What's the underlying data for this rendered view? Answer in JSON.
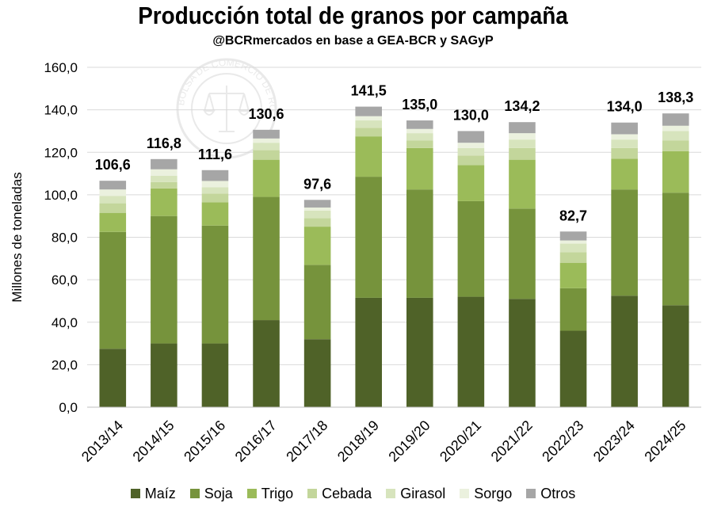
{
  "header": {
    "title": "Producción total de granos por campaña",
    "subtitle": "@BCRmercados  en base a GEA-BCR y SAGyP"
  },
  "watermark": {
    "text": "BOLSA DE COMERCIO DE ROSARIO",
    "icon": "seal-scales-icon"
  },
  "chart_data": {
    "type": "bar",
    "stacked": true,
    "ylabel": "Millones de toneladas",
    "ylim": [
      0,
      160
    ],
    "yticks": [
      "0,0",
      "20,0",
      "40,0",
      "60,0",
      "80,0",
      "100,0",
      "120,0",
      "140,0",
      "160,0"
    ],
    "grid": true,
    "legend_position": "bottom",
    "categories": [
      "2013/14",
      "2014/15",
      "2015/16",
      "2016/17",
      "2017/18",
      "2018/19",
      "2019/20",
      "2020/21",
      "2021/22",
      "2022/23",
      "2023/24",
      "2024/25"
    ],
    "totals": [
      "106,6",
      "116,8",
      "111,6",
      "130,6",
      "97,6",
      "141,5",
      "135,0",
      "130,0",
      "134,2",
      "82,7",
      "134,0",
      "138,3"
    ],
    "series": [
      {
        "name": "Maíz",
        "color": "#4f6228",
        "values": [
          27.5,
          30.0,
          30.0,
          41.0,
          32.0,
          51.5,
          51.5,
          52.0,
          51.0,
          36.0,
          52.5,
          48.0
        ]
      },
      {
        "name": "Soja",
        "color": "#76933c",
        "values": [
          55.0,
          60.0,
          55.5,
          58.0,
          35.0,
          57.0,
          51.0,
          45.0,
          42.5,
          20.0,
          50.0,
          53.0
        ]
      },
      {
        "name": "Trigo",
        "color": "#9bbb59",
        "values": [
          9.0,
          13.0,
          11.0,
          17.5,
          18.0,
          19.0,
          19.5,
          17.0,
          23.0,
          12.0,
          14.5,
          19.5
        ]
      },
      {
        "name": "Cebada",
        "color": "#c3d69b",
        "values": [
          4.5,
          3.0,
          4.0,
          4.5,
          4.0,
          4.0,
          3.5,
          4.5,
          5.5,
          5.0,
          5.0,
          5.0
        ]
      },
      {
        "name": "Girasol",
        "color": "#d7e4bd",
        "values": [
          3.5,
          3.0,
          3.0,
          3.5,
          3.5,
          3.5,
          3.5,
          3.5,
          4.0,
          4.0,
          4.0,
          4.5
        ]
      },
      {
        "name": "Sorgo",
        "color": "#ebf1de",
        "values": [
          3.0,
          3.0,
          3.0,
          2.0,
          1.5,
          2.0,
          2.0,
          2.5,
          3.0,
          1.5,
          2.5,
          2.5
        ]
      },
      {
        "name": "Otros",
        "color": "#a6a6a6",
        "values": [
          4.1,
          4.8,
          5.1,
          4.1,
          3.6,
          4.5,
          4.0,
          5.5,
          5.2,
          4.2,
          5.5,
          5.8
        ]
      }
    ]
  }
}
